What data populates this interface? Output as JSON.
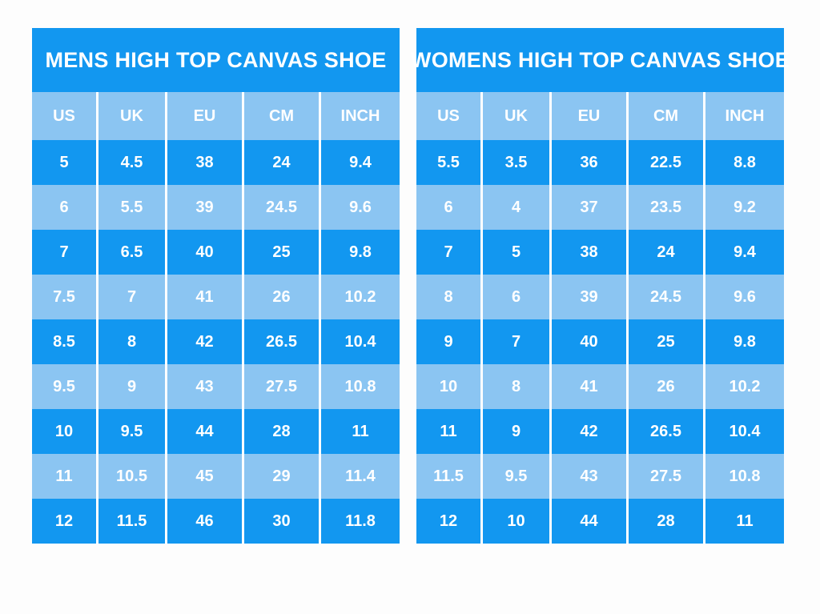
{
  "chart_data": [
    {
      "type": "table",
      "title": "MENS HIGH TOP CANVAS SHOE",
      "columns": [
        "US",
        "UK",
        "EU",
        "CM",
        "INCH"
      ],
      "rows": [
        [
          "5",
          "4.5",
          "38",
          "24",
          "9.4"
        ],
        [
          "6",
          "5.5",
          "39",
          "24.5",
          "9.6"
        ],
        [
          "7",
          "6.5",
          "40",
          "25",
          "9.8"
        ],
        [
          "7.5",
          "7",
          "41",
          "26",
          "10.2"
        ],
        [
          "8.5",
          "8",
          "42",
          "26.5",
          "10.4"
        ],
        [
          "9.5",
          "9",
          "43",
          "27.5",
          "10.8"
        ],
        [
          "10",
          "9.5",
          "44",
          "28",
          "11"
        ],
        [
          "11",
          "10.5",
          "45",
          "29",
          "11.4"
        ],
        [
          "12",
          "11.5",
          "46",
          "30",
          "11.8"
        ]
      ]
    },
    {
      "type": "table",
      "title": "WOMENS HIGH TOP CANVAS SHOE",
      "columns": [
        "US",
        "UK",
        "EU",
        "CM",
        "INCH"
      ],
      "rows": [
        [
          "5.5",
          "3.5",
          "36",
          "22.5",
          "8.8"
        ],
        [
          "6",
          "4",
          "37",
          "23.5",
          "9.2"
        ],
        [
          "7",
          "5",
          "38",
          "24",
          "9.4"
        ],
        [
          "8",
          "6",
          "39",
          "24.5",
          "9.6"
        ],
        [
          "9",
          "7",
          "40",
          "25",
          "9.8"
        ],
        [
          "10",
          "8",
          "41",
          "26",
          "10.2"
        ],
        [
          "11",
          "9",
          "42",
          "26.5",
          "10.4"
        ],
        [
          "11.5",
          "9.5",
          "43",
          "27.5",
          "10.8"
        ],
        [
          "12",
          "10",
          "44",
          "28",
          "11"
        ]
      ]
    }
  ],
  "colors": {
    "row_dark": "#1297f0",
    "row_light": "#8bc5f2",
    "divider": "#ffffff",
    "text": "#ffffff",
    "page_background": "#fdfdfd"
  }
}
